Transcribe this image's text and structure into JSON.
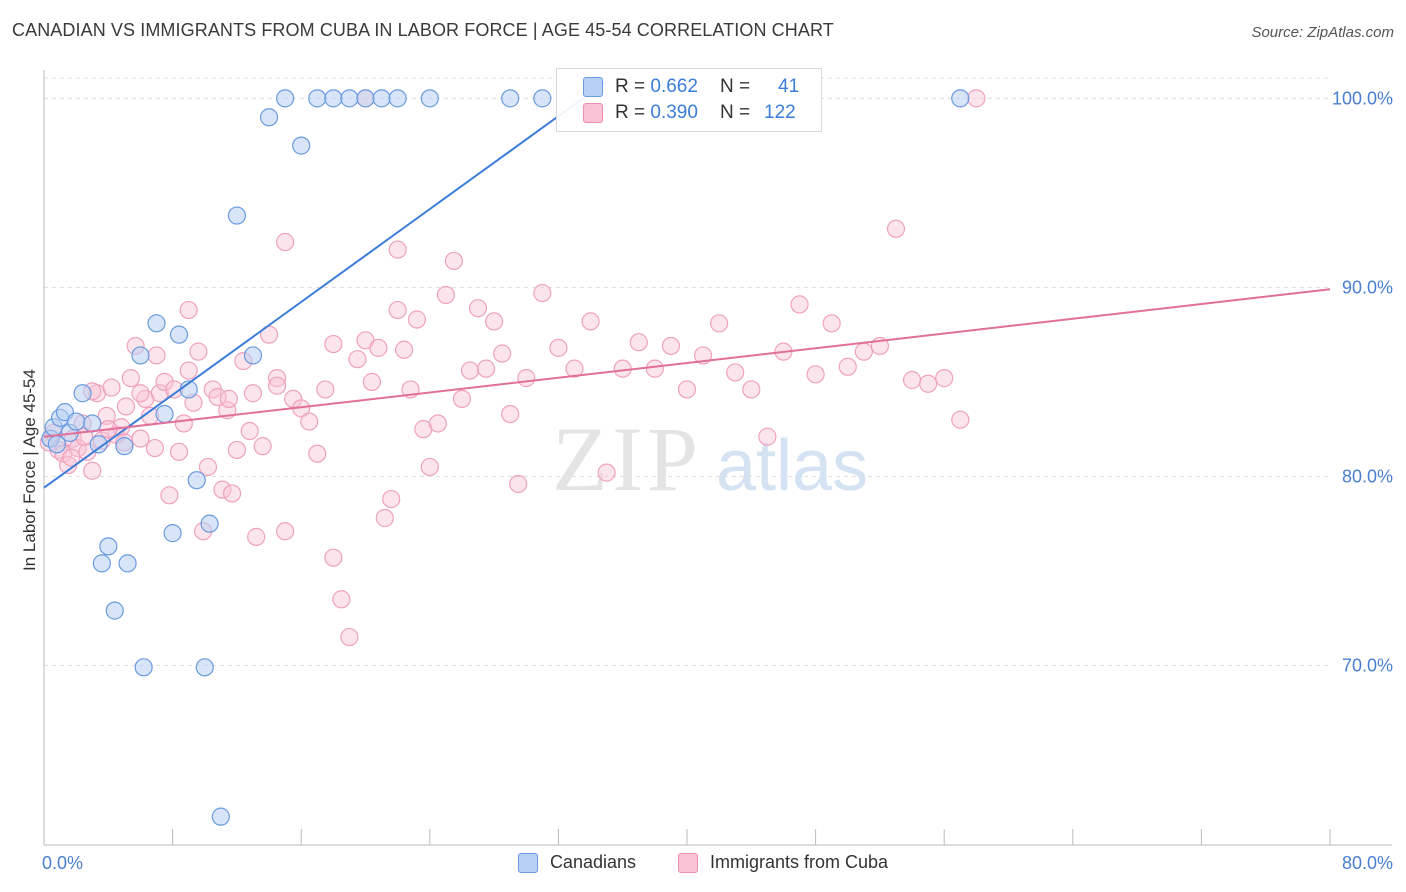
{
  "title": "CANADIAN VS IMMIGRANTS FROM CUBA IN LABOR FORCE | AGE 45-54 CORRELATION CHART",
  "source": "Source: ZipAtlas.com",
  "watermark": {
    "zip": "ZIP",
    "atlas": "atlas"
  },
  "legend": {
    "series": [
      {
        "r_label": "R =",
        "r_value": "0.662",
        "n_label": "N =",
        "n_value": "41",
        "fill": "#b8d0f3",
        "stroke": "#6a9be0"
      },
      {
        "r_label": "R =",
        "r_value": "0.390",
        "n_label": "N =",
        "n_value": "122",
        "fill": "#f8c3d4",
        "stroke": "#ea8fae"
      }
    ]
  },
  "bottom_legend": [
    "Canadians",
    "Immigrants from Cuba"
  ],
  "chart_data": {
    "type": "scatter",
    "title": "CANADIAN VS IMMIGRANTS FROM CUBA IN LABOR FORCE | AGE 45-54 CORRELATION CHART",
    "xlabel": "",
    "ylabel": "In Labor Force | Age 45-54",
    "xlim": [
      0,
      80
    ],
    "ylim": [
      60.5,
      101.5
    ],
    "x_tick_labels": [
      "0.0%",
      "80.0%"
    ],
    "y_ticks": [
      70,
      80,
      90,
      100
    ],
    "y_tick_labels": [
      "70.0%",
      "80.0%",
      "90.0%",
      "100.0%"
    ],
    "x_minor_ticks": [
      8,
      16,
      24,
      32,
      40,
      48,
      56,
      64,
      72,
      80
    ],
    "colors": {
      "canadians": "#3b7dd8",
      "cuba": "#e0709a",
      "tick_text": "#4a7fd0"
    },
    "series": [
      {
        "name": "Canadians",
        "points": [
          [
            0.4,
            82.0
          ],
          [
            0.6,
            82.6
          ],
          [
            0.8,
            81.7
          ],
          [
            1.0,
            83.1
          ],
          [
            1.3,
            83.4
          ],
          [
            1.6,
            82.3
          ],
          [
            2.0,
            82.9
          ],
          [
            2.4,
            84.4
          ],
          [
            3.0,
            82.8
          ],
          [
            3.4,
            81.7
          ],
          [
            3.6,
            75.4
          ],
          [
            4.0,
            76.3
          ],
          [
            4.4,
            72.9
          ],
          [
            5.0,
            81.6
          ],
          [
            5.2,
            75.4
          ],
          [
            6.0,
            86.4
          ],
          [
            6.2,
            69.9
          ],
          [
            7.0,
            88.1
          ],
          [
            7.5,
            83.3
          ],
          [
            8.0,
            77.0
          ],
          [
            8.4,
            87.5
          ],
          [
            9.0,
            84.6
          ],
          [
            9.5,
            79.8
          ],
          [
            10.0,
            69.9
          ],
          [
            10.3,
            77.5
          ],
          [
            11.0,
            62.0
          ],
          [
            12.0,
            93.8
          ],
          [
            13.0,
            86.4
          ],
          [
            14.0,
            99.0
          ],
          [
            15.0,
            100.0
          ],
          [
            16.0,
            97.5
          ],
          [
            17.0,
            100.0
          ],
          [
            18.0,
            100.0
          ],
          [
            19.0,
            100.0
          ],
          [
            20.0,
            100.0
          ],
          [
            21.0,
            100.0
          ],
          [
            22.0,
            100.0
          ],
          [
            24.0,
            100.0
          ],
          [
            29.0,
            100.0
          ],
          [
            31.0,
            100.0
          ],
          [
            57.0,
            100.0
          ]
        ],
        "trend": {
          "x0": 0,
          "y0": 79.4,
          "x1": 35,
          "y1": 100.9
        }
      },
      {
        "name": "Immigrants from Cuba",
        "points": [
          [
            0.3,
            81.8
          ],
          [
            0.6,
            82.3
          ],
          [
            0.9,
            81.4
          ],
          [
            1.2,
            81.2
          ],
          [
            1.5,
            80.6
          ],
          [
            1.8,
            82.0
          ],
          [
            2.1,
            81.5
          ],
          [
            2.4,
            82.8
          ],
          [
            2.7,
            81.3
          ],
          [
            3.0,
            80.3
          ],
          [
            3.3,
            84.4
          ],
          [
            3.6,
            81.9
          ],
          [
            3.9,
            83.2
          ],
          [
            4.2,
            84.7
          ],
          [
            4.5,
            82.2
          ],
          [
            4.8,
            82.6
          ],
          [
            5.1,
            83.7
          ],
          [
            5.4,
            85.2
          ],
          [
            5.7,
            86.9
          ],
          [
            6.0,
            82.0
          ],
          [
            6.3,
            84.1
          ],
          [
            6.6,
            83.2
          ],
          [
            6.9,
            81.5
          ],
          [
            7.2,
            84.4
          ],
          [
            7.5,
            85.0
          ],
          [
            7.8,
            79.0
          ],
          [
            8.1,
            84.6
          ],
          [
            8.4,
            81.3
          ],
          [
            8.7,
            82.8
          ],
          [
            9.0,
            85.6
          ],
          [
            9.3,
            83.9
          ],
          [
            9.6,
            86.6
          ],
          [
            9.9,
            77.1
          ],
          [
            10.2,
            80.5
          ],
          [
            10.5,
            84.6
          ],
          [
            10.8,
            84.2
          ],
          [
            11.1,
            79.3
          ],
          [
            11.4,
            83.5
          ],
          [
            11.7,
            79.1
          ],
          [
            12.0,
            81.4
          ],
          [
            12.4,
            86.1
          ],
          [
            12.8,
            82.4
          ],
          [
            13.2,
            76.8
          ],
          [
            13.6,
            81.6
          ],
          [
            14.0,
            87.5
          ],
          [
            14.5,
            85.2
          ],
          [
            15.0,
            77.1
          ],
          [
            15.5,
            84.1
          ],
          [
            16.0,
            83.6
          ],
          [
            16.5,
            82.9
          ],
          [
            17.0,
            81.2
          ],
          [
            17.5,
            84.6
          ],
          [
            18.0,
            75.7
          ],
          [
            18.5,
            73.5
          ],
          [
            19.0,
            71.5
          ],
          [
            19.5,
            86.2
          ],
          [
            20.0,
            87.2
          ],
          [
            20.4,
            85.0
          ],
          [
            20.8,
            86.8
          ],
          [
            21.2,
            77.8
          ],
          [
            21.6,
            78.8
          ],
          [
            22.0,
            88.8
          ],
          [
            22.4,
            86.7
          ],
          [
            22.8,
            84.6
          ],
          [
            23.2,
            88.3
          ],
          [
            23.6,
            82.5
          ],
          [
            24.0,
            80.5
          ],
          [
            24.5,
            82.8
          ],
          [
            25.0,
            89.6
          ],
          [
            25.5,
            91.4
          ],
          [
            26.0,
            84.1
          ],
          [
            26.5,
            85.6
          ],
          [
            27.0,
            88.9
          ],
          [
            27.5,
            85.7
          ],
          [
            28.0,
            88.2
          ],
          [
            28.5,
            86.5
          ],
          [
            29.0,
            83.3
          ],
          [
            29.5,
            79.6
          ],
          [
            30.0,
            85.2
          ],
          [
            31.0,
            89.7
          ],
          [
            32.0,
            86.8
          ],
          [
            33.0,
            85.7
          ],
          [
            34.0,
            88.2
          ],
          [
            35.0,
            80.2
          ],
          [
            36.0,
            85.7
          ],
          [
            37.0,
            87.1
          ],
          [
            38.0,
            85.7
          ],
          [
            39.0,
            86.9
          ],
          [
            40.0,
            84.6
          ],
          [
            41.0,
            86.4
          ],
          [
            42.0,
            88.1
          ],
          [
            43.0,
            85.5
          ],
          [
            44.0,
            84.6
          ],
          [
            45.0,
            82.1
          ],
          [
            46.0,
            86.6
          ],
          [
            47.0,
            89.1
          ],
          [
            48.0,
            85.4
          ],
          [
            49.0,
            88.1
          ],
          [
            50.0,
            85.8
          ],
          [
            51.0,
            86.6
          ],
          [
            52.0,
            86.9
          ],
          [
            53.0,
            93.1
          ],
          [
            54.0,
            85.1
          ],
          [
            55.0,
            84.9
          ],
          [
            56.0,
            85.2
          ],
          [
            57.0,
            83.0
          ],
          [
            58.0,
            100.0
          ],
          [
            20.0,
            100.0
          ],
          [
            22.0,
            92.0
          ],
          [
            15.0,
            92.4
          ],
          [
            18.0,
            87.0
          ],
          [
            14.5,
            84.8
          ],
          [
            13.0,
            84.4
          ],
          [
            11.5,
            84.1
          ],
          [
            9.0,
            88.8
          ],
          [
            7.0,
            86.4
          ],
          [
            6.0,
            84.4
          ],
          [
            5.0,
            81.8
          ],
          [
            4.0,
            82.5
          ],
          [
            3.0,
            84.5
          ],
          [
            2.5,
            82.1
          ],
          [
            1.7,
            81.0
          ]
        ],
        "trend": {
          "x0": 0,
          "y0": 82.1,
          "x1": 80,
          "y1": 89.9
        }
      }
    ]
  }
}
